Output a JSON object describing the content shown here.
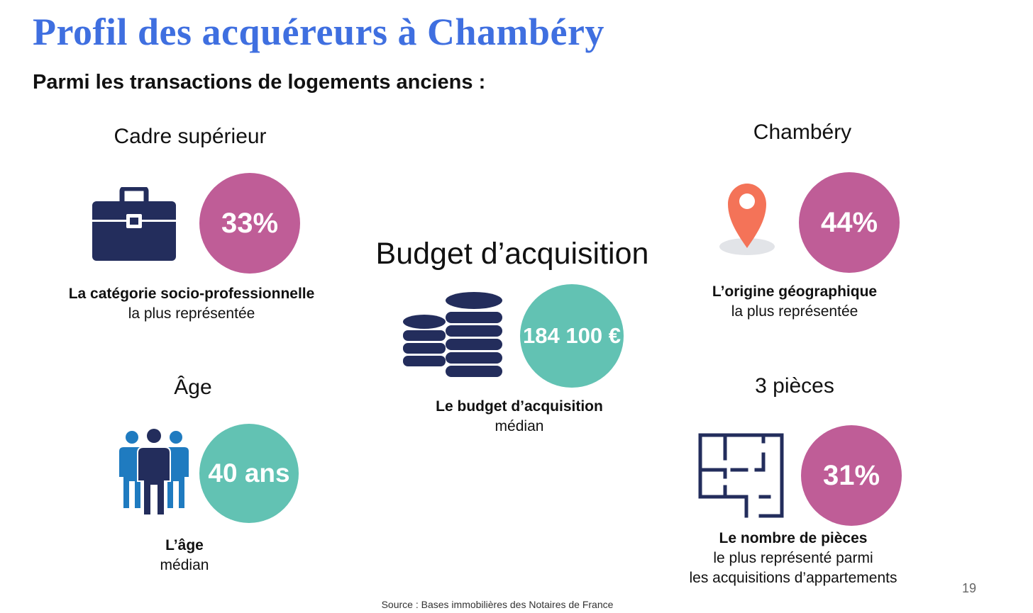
{
  "title": "Profil des acquéreurs à Chambéry",
  "subtitle": "Parmi les transactions de logements anciens :",
  "blocks": {
    "csp": {
      "heading": "Cadre supérieur",
      "value": "33%",
      "desc_bold": "La catégorie socio-professionnelle",
      "desc_lines": [
        "la plus représentée"
      ],
      "icon": "briefcase-icon"
    },
    "age": {
      "heading": "Âge",
      "value": "40 ans",
      "desc_bold": "L’âge",
      "desc_lines": [
        "médian"
      ],
      "icon": "people-icon"
    },
    "budget": {
      "heading": "Budget d’acquisition",
      "value": "184 100 €",
      "desc_bold": "Le budget d’acquisition",
      "desc_lines": [
        "médian"
      ],
      "icon": "coins-icon"
    },
    "origin": {
      "heading": "Chambéry",
      "value": "44%",
      "desc_bold": "L’origine géographique",
      "desc_lines": [
        "la plus représentée"
      ],
      "icon": "map-pin-icon"
    },
    "rooms": {
      "heading": "3 pièces",
      "value": "31%",
      "desc_bold": "Le nombre de pièces",
      "desc_lines": [
        "le plus représenté parmi",
        "les acquisitions d’appartements"
      ],
      "icon": "floorplan-icon"
    }
  },
  "source": "Source :  Bases immobilières des Notaires de France",
  "page_number": "19",
  "colors": {
    "title": "#3f6fe0",
    "pink_circle": "#bf5d97",
    "teal_circle": "#62c2b3",
    "navy_icon": "#232d5c",
    "blue_icon": "#1f7bc0",
    "pin": "#f47358"
  }
}
